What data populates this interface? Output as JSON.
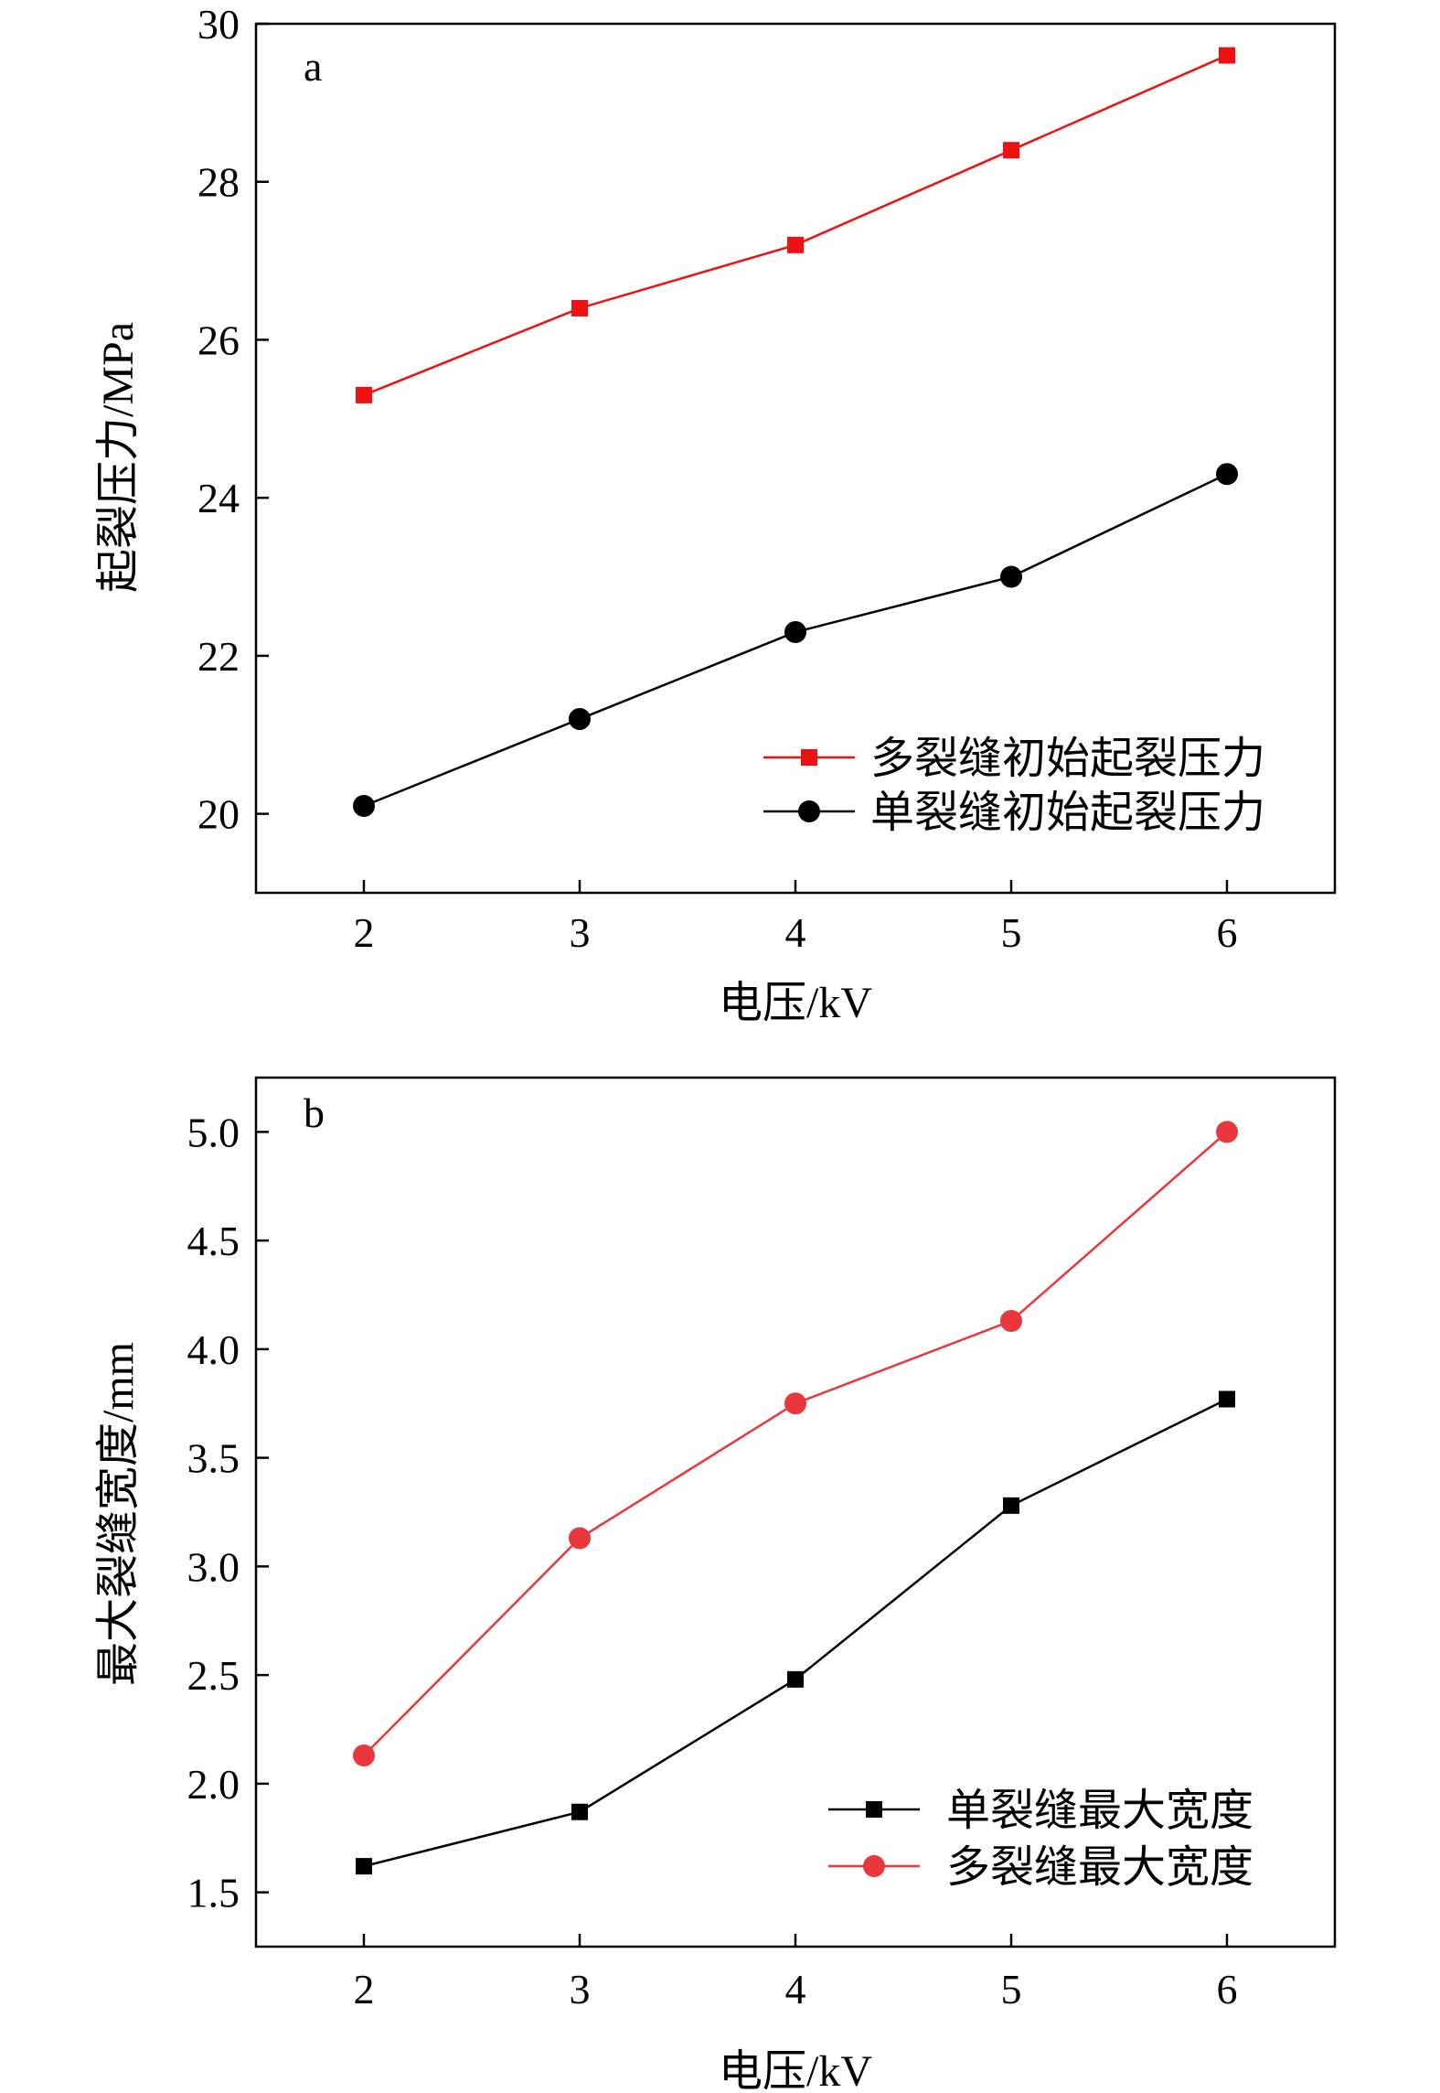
{
  "chart_data": [
    {
      "type": "line",
      "panel_label": "a",
      "xlabel": "电压/kV",
      "ylabel": "起裂压力/MPa",
      "x": [
        2,
        3,
        4,
        5,
        6
      ],
      "xlim": [
        1.5,
        6.5
      ],
      "ylim": [
        19,
        30
      ],
      "xticks": [
        "2",
        "3",
        "4",
        "5",
        "6"
      ],
      "yticks": [
        "20",
        "22",
        "24",
        "26",
        "28",
        "30"
      ],
      "grid": false,
      "legend_position": "bottom-right",
      "series": [
        {
          "name": "多裂缝初始起裂压力",
          "values": [
            25.3,
            26.4,
            27.2,
            28.4,
            29.6
          ],
          "color": "#ee1111",
          "marker": "square"
        },
        {
          "name": "单裂缝初始起裂压力",
          "values": [
            20.1,
            21.2,
            22.3,
            23.0,
            24.3
          ],
          "color": "#000000",
          "marker": "circle"
        }
      ]
    },
    {
      "type": "line",
      "panel_label": "b",
      "xlabel": "电压/kV",
      "ylabel": "最大裂缝宽度/mm",
      "x": [
        2,
        3,
        4,
        5,
        6
      ],
      "xlim": [
        1.5,
        6.5
      ],
      "ylim": [
        1.25,
        5.25
      ],
      "xticks": [
        "2",
        "3",
        "4",
        "5",
        "6"
      ],
      "yticks": [
        "1.5",
        "2.0",
        "2.5",
        "3.0",
        "3.5",
        "4.0",
        "4.5",
        "5.0"
      ],
      "grid": false,
      "legend_position": "bottom-right",
      "series": [
        {
          "name": "单裂缝最大宽度",
          "values": [
            1.62,
            1.87,
            2.48,
            3.28,
            3.77
          ],
          "color": "#000000",
          "marker": "square"
        },
        {
          "name": "多裂缝最大宽度",
          "values": [
            2.13,
            3.13,
            3.75,
            4.13,
            5.0
          ],
          "color": "#e8383d",
          "marker": "circle"
        }
      ]
    }
  ]
}
